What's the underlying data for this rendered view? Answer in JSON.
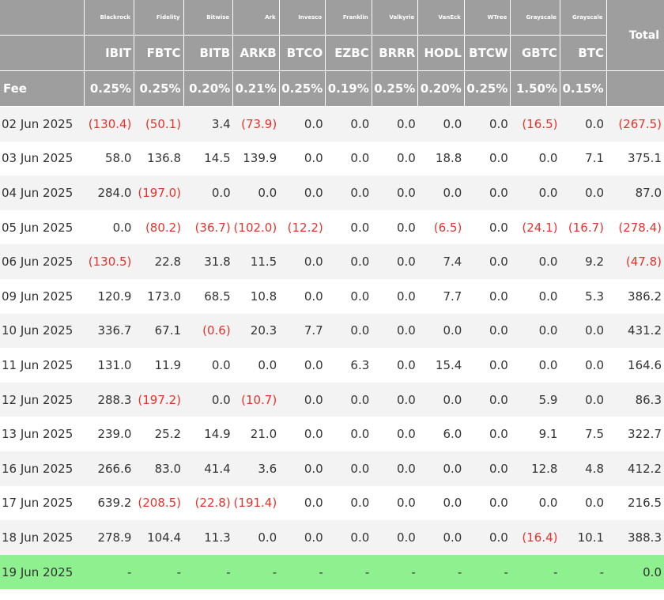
{
  "chart_data": {
    "type": "table",
    "issuers": [
      "Blackrock",
      "Fidelity",
      "Bitwise",
      "Ark",
      "Invesco",
      "Franklin",
      "Valkyrie",
      "VanEck",
      "WTree",
      "Grayscale",
      "Grayscale"
    ],
    "tickers": [
      "IBIT",
      "FBTC",
      "BITB",
      "ARKB",
      "BTCO",
      "EZBC",
      "BRRR",
      "HODL",
      "BTCW",
      "GBTC",
      "BTC"
    ],
    "fees": [
      "0.25%",
      "0.25%",
      "0.20%",
      "0.21%",
      "0.25%",
      "0.19%",
      "0.25%",
      "0.20%",
      "0.25%",
      "1.50%",
      "0.15%"
    ],
    "total_label": "Total",
    "fee_label": "Fee",
    "rows": [
      {
        "date": "02 Jun 2025",
        "values": [
          "(130.4)",
          "(50.1)",
          "3.4",
          "(73.9)",
          "0.0",
          "0.0",
          "0.0",
          "0.0",
          "0.0",
          "(16.5)",
          "0.0"
        ],
        "total": "(267.5)"
      },
      {
        "date": "03 Jun 2025",
        "values": [
          "58.0",
          "136.8",
          "14.5",
          "139.9",
          "0.0",
          "0.0",
          "0.0",
          "18.8",
          "0.0",
          "0.0",
          "7.1"
        ],
        "total": "375.1"
      },
      {
        "date": "04 Jun 2025",
        "values": [
          "284.0",
          "(197.0)",
          "0.0",
          "0.0",
          "0.0",
          "0.0",
          "0.0",
          "0.0",
          "0.0",
          "0.0",
          "0.0"
        ],
        "total": "87.0"
      },
      {
        "date": "05 Jun 2025",
        "values": [
          "0.0",
          "(80.2)",
          "(36.7)",
          "(102.0)",
          "(12.2)",
          "0.0",
          "0.0",
          "(6.5)",
          "0.0",
          "(24.1)",
          "(16.7)"
        ],
        "total": "(278.4)"
      },
      {
        "date": "06 Jun 2025",
        "values": [
          "(130.5)",
          "22.8",
          "31.8",
          "11.5",
          "0.0",
          "0.0",
          "0.0",
          "7.4",
          "0.0",
          "0.0",
          "9.2"
        ],
        "total": "(47.8)"
      },
      {
        "date": "09 Jun 2025",
        "values": [
          "120.9",
          "173.0",
          "68.5",
          "10.8",
          "0.0",
          "0.0",
          "0.0",
          "7.7",
          "0.0",
          "0.0",
          "5.3"
        ],
        "total": "386.2"
      },
      {
        "date": "10 Jun 2025",
        "values": [
          "336.7",
          "67.1",
          "(0.6)",
          "20.3",
          "7.7",
          "0.0",
          "0.0",
          "0.0",
          "0.0",
          "0.0",
          "0.0"
        ],
        "total": "431.2"
      },
      {
        "date": "11 Jun 2025",
        "values": [
          "131.0",
          "11.9",
          "0.0",
          "0.0",
          "0.0",
          "6.3",
          "0.0",
          "15.4",
          "0.0",
          "0.0",
          "0.0"
        ],
        "total": "164.6"
      },
      {
        "date": "12 Jun 2025",
        "values": [
          "288.3",
          "(197.2)",
          "0.0",
          "(10.7)",
          "0.0",
          "0.0",
          "0.0",
          "0.0",
          "0.0",
          "5.9",
          "0.0"
        ],
        "total": "86.3"
      },
      {
        "date": "13 Jun 2025",
        "values": [
          "239.0",
          "25.2",
          "14.9",
          "21.0",
          "0.0",
          "0.0",
          "0.0",
          "6.0",
          "0.0",
          "9.1",
          "7.5"
        ],
        "total": "322.7"
      },
      {
        "date": "16 Jun 2025",
        "values": [
          "266.6",
          "83.0",
          "41.4",
          "3.6",
          "0.0",
          "0.0",
          "0.0",
          "0.0",
          "0.0",
          "12.8",
          "4.8"
        ],
        "total": "412.2"
      },
      {
        "date": "17 Jun 2025",
        "values": [
          "639.2",
          "(208.5)",
          "(22.8)",
          "(191.4)",
          "0.0",
          "0.0",
          "0.0",
          "0.0",
          "0.0",
          "0.0",
          "0.0"
        ],
        "total": "216.5"
      },
      {
        "date": "18 Jun 2025",
        "values": [
          "278.9",
          "104.4",
          "11.3",
          "0.0",
          "0.0",
          "0.0",
          "0.0",
          "0.0",
          "0.0",
          "(16.4)",
          "10.1"
        ],
        "total": "388.3"
      },
      {
        "date": "19 Jun 2025",
        "values": [
          "-",
          "-",
          "-",
          "-",
          "-",
          "-",
          "-",
          "-",
          "-",
          "-",
          "-"
        ],
        "total": "0.0",
        "pending": true
      }
    ],
    "colors": {
      "header_bg": "#9e9e9e",
      "negative": "#e8322c",
      "pending_row": "#8ff08f",
      "stripe": "#f3f3f3"
    }
  }
}
